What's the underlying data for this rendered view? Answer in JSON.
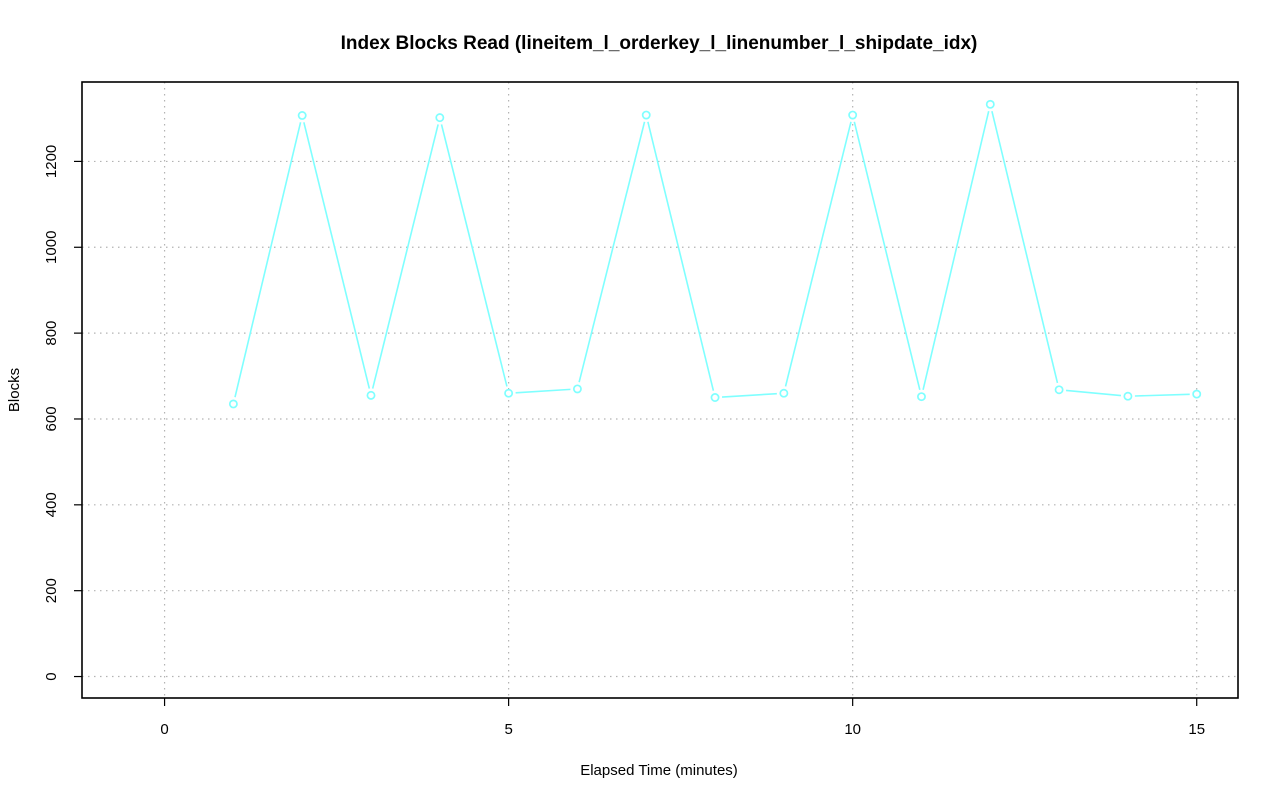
{
  "chart_data": {
    "type": "line",
    "title": "Index Blocks Read (lineitem_l_orderkey_l_linenumber_l_shipdate_idx)",
    "xlabel": "Elapsed Time (minutes)",
    "ylabel": "Blocks",
    "xlim": [
      -1.2,
      15.6
    ],
    "ylim": [
      -50,
      1385
    ],
    "x_ticks": [
      0,
      5,
      10,
      15
    ],
    "y_ticks": [
      0,
      200,
      400,
      600,
      800,
      1000,
      1200
    ],
    "grid": true,
    "series": [
      {
        "color": "#7fffff",
        "marker": "open-circle",
        "x": [
          1,
          2,
          3,
          4,
          5,
          6,
          7,
          8,
          9,
          10,
          11,
          12,
          13,
          14,
          15
        ],
        "y": [
          635,
          1307,
          655,
          1302,
          660,
          670,
          1308,
          650,
          660,
          1308,
          652,
          1333,
          668,
          653,
          658
        ]
      }
    ]
  }
}
